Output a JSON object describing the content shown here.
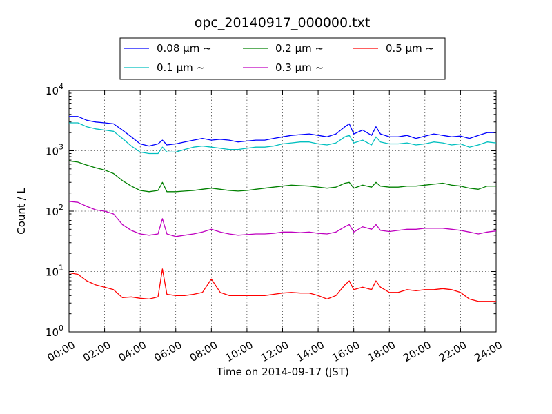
{
  "chart_data": {
    "type": "line",
    "title": "opc_20140917_000000.txt",
    "xlabel": "Time on 2014-09-17 (JST)",
    "ylabel": "Count / L",
    "y_scale": "log",
    "ylim": [
      1,
      10000
    ],
    "xlim": [
      "00:00",
      "24:00"
    ],
    "grid": true,
    "legend_position": "top-center",
    "x_ticks": [
      "00:00",
      "02:00",
      "04:00",
      "06:00",
      "08:00",
      "10:00",
      "12:00",
      "14:00",
      "16:00",
      "18:00",
      "20:00",
      "22:00",
      "24:00"
    ],
    "y_ticks": [
      {
        "base": "10",
        "exp": "0"
      },
      {
        "base": "10",
        "exp": "1"
      },
      {
        "base": "10",
        "exp": "2"
      },
      {
        "base": "10",
        "exp": "3"
      },
      {
        "base": "10",
        "exp": "4"
      }
    ],
    "x": [
      "00:00",
      "00:30",
      "01:00",
      "01:30",
      "02:00",
      "02:30",
      "03:00",
      "03:30",
      "04:00",
      "04:30",
      "05:00",
      "05:15",
      "05:30",
      "06:00",
      "06:30",
      "07:00",
      "07:30",
      "08:00",
      "08:30",
      "09:00",
      "09:30",
      "10:00",
      "10:30",
      "11:00",
      "11:30",
      "12:00",
      "12:30",
      "13:00",
      "13:30",
      "14:00",
      "14:30",
      "15:00",
      "15:30",
      "15:45",
      "16:00",
      "16:30",
      "17:00",
      "17:15",
      "17:30",
      "18:00",
      "18:30",
      "19:00",
      "19:30",
      "20:00",
      "20:30",
      "21:00",
      "21:30",
      "22:00",
      "22:30",
      "23:00",
      "23:30",
      "24:00"
    ],
    "series": [
      {
        "name": "0.08 μm ~",
        "color": "#0000ff",
        "values": [
          3700,
          3700,
          3200,
          3000,
          2900,
          2800,
          2200,
          1700,
          1300,
          1200,
          1300,
          1500,
          1250,
          1300,
          1400,
          1500,
          1600,
          1500,
          1550,
          1500,
          1400,
          1450,
          1500,
          1500,
          1600,
          1700,
          1800,
          1850,
          1900,
          1800,
          1700,
          1900,
          2500,
          2800,
          1900,
          2200,
          1800,
          2500,
          1900,
          1700,
          1700,
          1800,
          1600,
          1750,
          1900,
          1800,
          1700,
          1750,
          1600,
          1800,
          2000,
          2000
        ]
      },
      {
        "name": "0.1 μm ~",
        "color": "#00bfbf",
        "values": [
          2900,
          2900,
          2500,
          2300,
          2200,
          2100,
          1600,
          1200,
          950,
          900,
          900,
          1150,
          950,
          950,
          1050,
          1150,
          1200,
          1150,
          1100,
          1050,
          1050,
          1100,
          1150,
          1150,
          1200,
          1300,
          1350,
          1400,
          1400,
          1300,
          1250,
          1350,
          1700,
          1800,
          1350,
          1500,
          1250,
          1700,
          1400,
          1300,
          1300,
          1350,
          1250,
          1300,
          1400,
          1350,
          1250,
          1300,
          1150,
          1250,
          1400,
          1350
        ]
      },
      {
        "name": "0.2 μm ~",
        "color": "#008000",
        "values": [
          680,
          650,
          580,
          520,
          480,
          420,
          320,
          260,
          220,
          210,
          220,
          300,
          210,
          210,
          215,
          220,
          230,
          240,
          230,
          220,
          215,
          220,
          230,
          240,
          250,
          260,
          270,
          265,
          260,
          250,
          240,
          250,
          290,
          300,
          240,
          270,
          250,
          300,
          260,
          250,
          250,
          260,
          260,
          270,
          280,
          290,
          270,
          260,
          240,
          230,
          260,
          260
        ]
      },
      {
        "name": "0.3 μm ~",
        "color": "#bf00bf",
        "values": [
          145,
          140,
          120,
          105,
          100,
          90,
          60,
          48,
          42,
          40,
          42,
          75,
          42,
          38,
          40,
          42,
          45,
          50,
          45,
          42,
          40,
          41,
          42,
          42,
          43,
          45,
          45,
          44,
          45,
          43,
          42,
          45,
          55,
          60,
          45,
          55,
          50,
          60,
          48,
          46,
          48,
          50,
          50,
          52,
          52,
          52,
          50,
          48,
          45,
          42,
          45,
          47
        ]
      },
      {
        "name": "0.5 μm ~",
        "color": "#ff0000",
        "values": [
          9.5,
          9,
          7,
          6,
          5.5,
          5,
          3.7,
          3.8,
          3.6,
          3.5,
          3.8,
          11,
          4.2,
          4,
          4,
          4.2,
          4.5,
          7.5,
          4.5,
          4,
          4,
          4,
          4,
          4,
          4.2,
          4.4,
          4.5,
          4.4,
          4.4,
          4,
          3.5,
          4,
          6,
          7,
          5,
          5.5,
          5,
          7,
          5.5,
          4.5,
          4.5,
          5,
          4.8,
          5,
          5,
          5.2,
          5,
          4.5,
          3.5,
          3.2,
          3.2,
          3.2
        ]
      }
    ]
  }
}
